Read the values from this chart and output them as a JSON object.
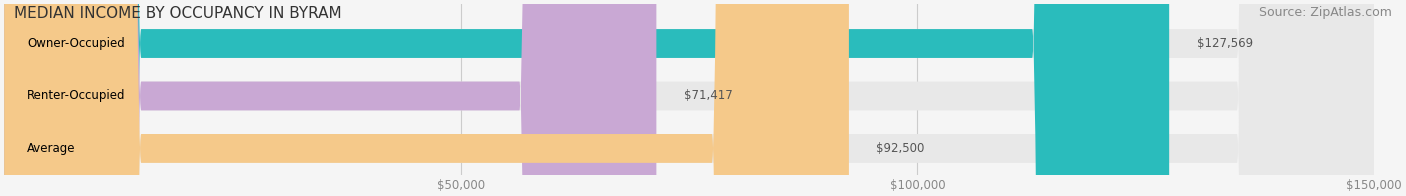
{
  "title": "MEDIAN INCOME BY OCCUPANCY IN BYRAM",
  "source": "Source: ZipAtlas.com",
  "categories": [
    "Owner-Occupied",
    "Renter-Occupied",
    "Average"
  ],
  "values": [
    127569,
    71417,
    92500
  ],
  "bar_colors": [
    "#2abcbc",
    "#c9a8d4",
    "#f5c98a"
  ],
  "bar_labels": [
    "$127,569",
    "$71,417",
    "$92,500"
  ],
  "xlim": [
    0,
    150000
  ],
  "xticks": [
    50000,
    100000,
    150000
  ],
  "xtick_labels": [
    "$50,000",
    "$100,000",
    "$150,000"
  ],
  "background_color": "#f5f5f5",
  "bar_bg_color": "#e8e8e8",
  "title_fontsize": 11,
  "source_fontsize": 9,
  "label_fontsize": 8.5,
  "tick_fontsize": 8.5
}
